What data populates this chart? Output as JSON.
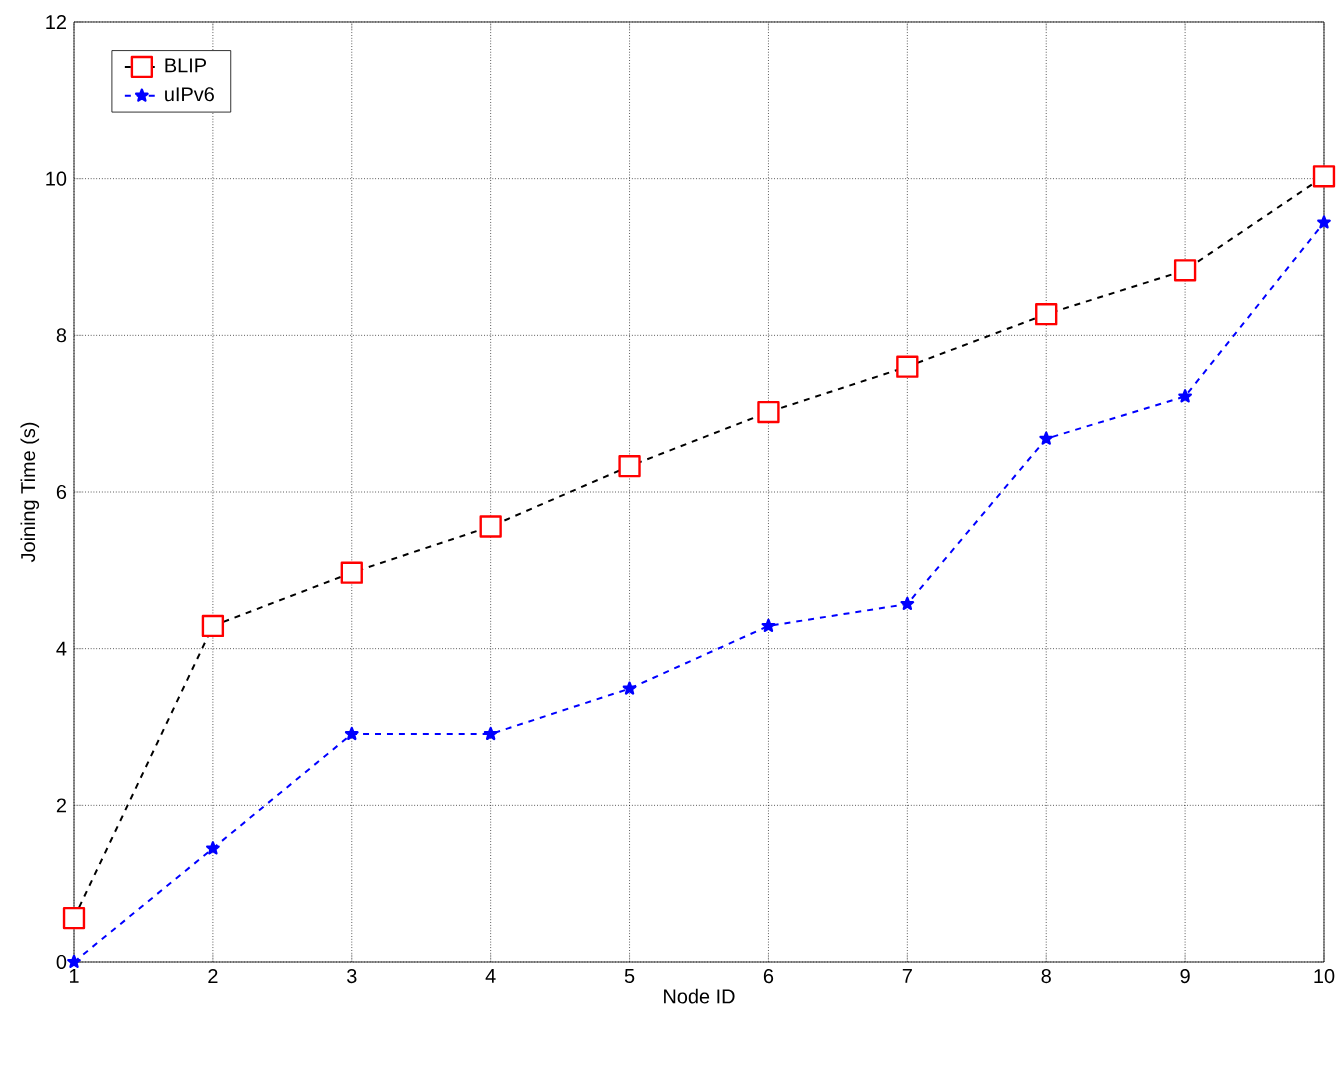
{
  "chart_data": {
    "type": "line",
    "xlabel": "Node ID",
    "ylabel": "Joining Time (s)",
    "x": [
      1,
      2,
      3,
      4,
      5,
      6,
      7,
      8,
      9,
      10
    ],
    "series": [
      {
        "name": "BLIP",
        "color": "#ff0000",
        "marker": "square",
        "values": [
          0.56,
          4.29,
          4.97,
          5.56,
          6.33,
          7.02,
          7.6,
          8.27,
          8.83,
          10.03
        ]
      },
      {
        "name": "uIPv6",
        "color": "#0000ff",
        "marker": "star",
        "values": [
          0,
          1.45,
          2.91,
          2.91,
          3.49,
          4.29,
          4.57,
          6.68,
          7.22,
          9.44
        ]
      }
    ],
    "xlim": [
      1,
      10
    ],
    "ylim": [
      0,
      12
    ],
    "xticks": [
      1,
      2,
      3,
      4,
      5,
      6,
      7,
      8,
      9,
      10
    ],
    "yticks": [
      0,
      2,
      4,
      6,
      8,
      10,
      12
    ],
    "grid": true,
    "legend": "top left",
    "line_style": "dashed"
  }
}
